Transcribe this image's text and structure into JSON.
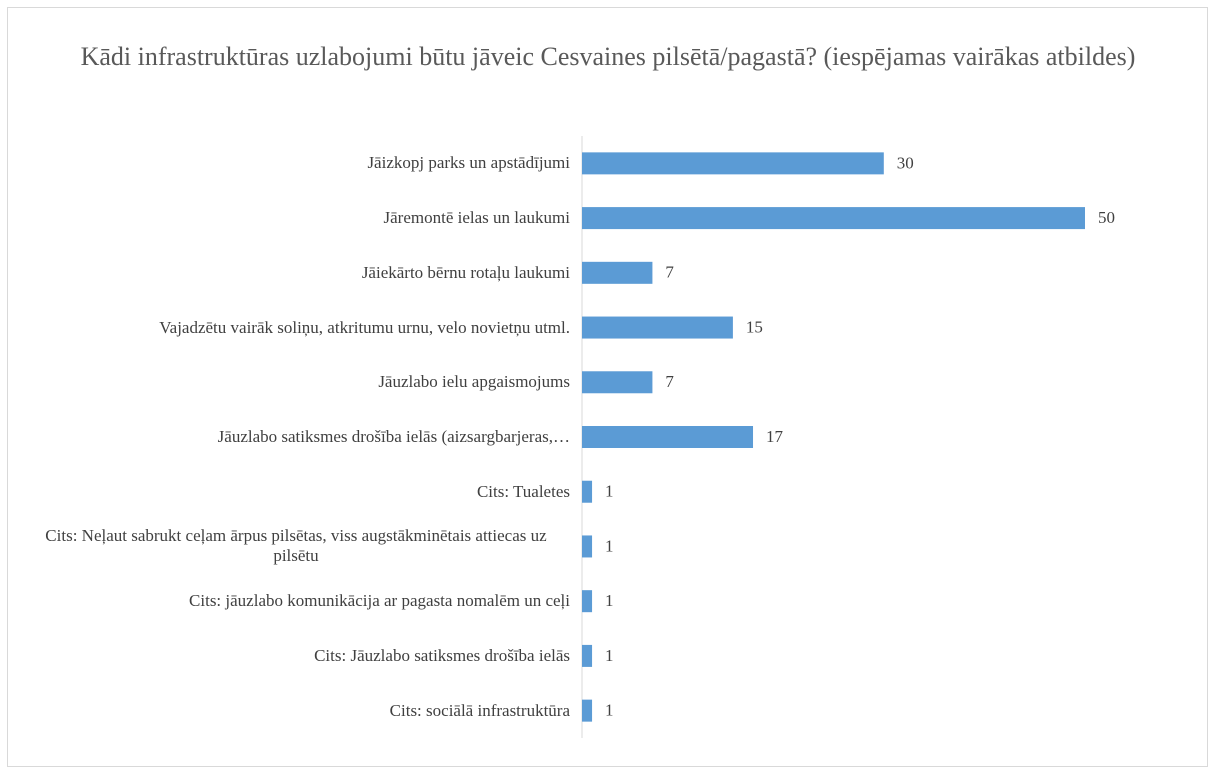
{
  "chart_data": {
    "type": "bar",
    "orientation": "horizontal",
    "title": "Kādi infrastruktūras uzlabojumi būtu jāveic Cesvaines pilsētā/pagastā? (iespējamas vairākas atbildes)",
    "categories": [
      "Jāizkopj parks un apstādījumi",
      "Jāremontē ielas un laukumi",
      "Jāiekārto bērnu rotaļu laukumi",
      "Vajadzētu vairāk soliņu, atkritumu urnu, velo novietņu utml.",
      "Jāuzlabo ielu apgaismojums",
      "Jāuzlabo satiksmes drošība ielās (aizsargbarjeras,…",
      "Cits: Tualetes",
      "Cits: Neļaut sabrukt ceļam ārpus pilsētas, viss augstākminētais attiecas uz pilsētu",
      "Cits: jāuzlabo komunikācija ar pagasta nomalēm un ceļi",
      "Cits: Jāuzlabo satiksmes drošība ielās",
      "Cits: sociālā infrastruktūra"
    ],
    "values": [
      30,
      50,
      7,
      15,
      7,
      17,
      1,
      1,
      1,
      1,
      1
    ],
    "color": "#5b9bd5"
  }
}
